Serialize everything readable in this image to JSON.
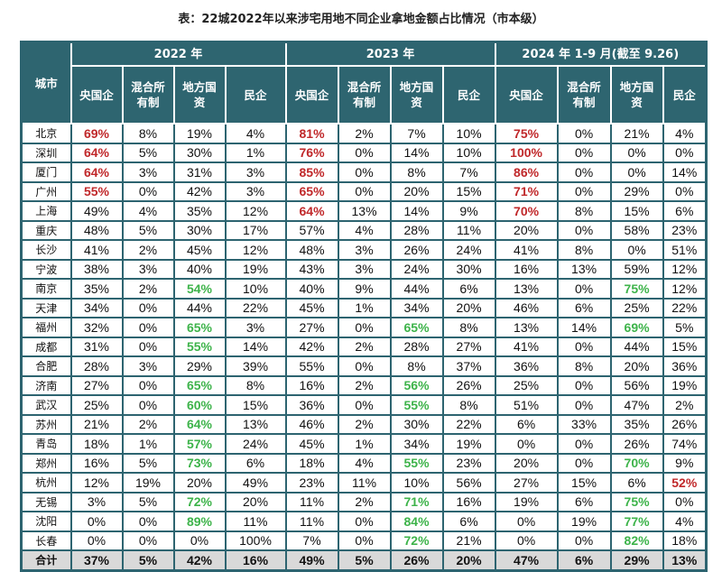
{
  "title": "表：22城2022年以来涉宅用地不同企业拿地金额占比情况（市本级）",
  "header": {
    "city": "城市",
    "years": [
      "2022 年",
      "2023 年",
      "2024 年 1-9 月(截至 9.26)"
    ],
    "cols": [
      [
        "央国企",
        "混合所有制",
        "地方国资",
        "民企"
      ],
      [
        "央国企",
        "混合所有制",
        "地方国资",
        "民企"
      ],
      [
        "央国企",
        "混合所有制",
        "地方国资",
        "民企"
      ]
    ]
  },
  "colors": {
    "red": "#c0282a",
    "green": "#3db34a",
    "header": "#2e6570"
  },
  "rows": [
    {
      "city": "北京",
      "v": [
        "69%",
        "8%",
        "19%",
        "4%",
        "81%",
        "2%",
        "7%",
        "10%",
        "75%",
        "0%",
        "21%",
        "4%"
      ],
      "hl": [
        "r",
        "",
        "",
        "",
        "r",
        "",
        "",
        "",
        "r",
        "",
        "",
        ""
      ]
    },
    {
      "city": "深圳",
      "v": [
        "64%",
        "5%",
        "30%",
        "1%",
        "76%",
        "0%",
        "14%",
        "10%",
        "100%",
        "0%",
        "0%",
        "0%"
      ],
      "hl": [
        "r",
        "",
        "",
        "",
        "r",
        "",
        "",
        "",
        "r",
        "",
        "",
        ""
      ]
    },
    {
      "city": "厦门",
      "v": [
        "64%",
        "3%",
        "31%",
        "3%",
        "85%",
        "0%",
        "8%",
        "7%",
        "86%",
        "0%",
        "0%",
        "14%"
      ],
      "hl": [
        "r",
        "",
        "",
        "",
        "r",
        "",
        "",
        "",
        "r",
        "",
        "",
        ""
      ]
    },
    {
      "city": "广州",
      "v": [
        "55%",
        "0%",
        "42%",
        "3%",
        "65%",
        "0%",
        "20%",
        "15%",
        "71%",
        "0%",
        "29%",
        "0%"
      ],
      "hl": [
        "r",
        "",
        "",
        "",
        "r",
        "",
        "",
        "",
        "r",
        "",
        "",
        ""
      ]
    },
    {
      "city": "上海",
      "v": [
        "49%",
        "4%",
        "35%",
        "12%",
        "64%",
        "13%",
        "14%",
        "9%",
        "70%",
        "8%",
        "15%",
        "6%"
      ],
      "hl": [
        "",
        "",
        "",
        "",
        "r",
        "",
        "",
        "",
        "r",
        "",
        "",
        ""
      ]
    },
    {
      "city": "重庆",
      "v": [
        "48%",
        "5%",
        "30%",
        "17%",
        "57%",
        "4%",
        "28%",
        "11%",
        "20%",
        "0%",
        "58%",
        "23%"
      ],
      "hl": [
        "",
        "",
        "",
        "",
        "",
        "",
        "",
        "",
        "",
        "",
        "",
        ""
      ]
    },
    {
      "city": "长沙",
      "v": [
        "41%",
        "2%",
        "45%",
        "12%",
        "48%",
        "3%",
        "26%",
        "24%",
        "41%",
        "8%",
        "0%",
        "51%"
      ],
      "hl": [
        "",
        "",
        "",
        "",
        "",
        "",
        "",
        "",
        "",
        "",
        "",
        ""
      ]
    },
    {
      "city": "宁波",
      "v": [
        "38%",
        "3%",
        "40%",
        "19%",
        "43%",
        "3%",
        "24%",
        "30%",
        "16%",
        "13%",
        "59%",
        "12%"
      ],
      "hl": [
        "",
        "",
        "",
        "",
        "",
        "",
        "",
        "",
        "",
        "",
        "",
        ""
      ]
    },
    {
      "city": "南京",
      "v": [
        "35%",
        "2%",
        "54%",
        "10%",
        "40%",
        "9%",
        "44%",
        "6%",
        "13%",
        "0%",
        "75%",
        "12%"
      ],
      "hl": [
        "",
        "",
        "g",
        "",
        "",
        "",
        "",
        "",
        "",
        "",
        "g",
        ""
      ]
    },
    {
      "city": "天津",
      "v": [
        "34%",
        "0%",
        "44%",
        "22%",
        "45%",
        "1%",
        "34%",
        "20%",
        "46%",
        "6%",
        "25%",
        "22%"
      ],
      "hl": [
        "",
        "",
        "",
        "",
        "",
        "",
        "",
        "",
        "",
        "",
        "",
        ""
      ]
    },
    {
      "city": "福州",
      "v": [
        "32%",
        "0%",
        "65%",
        "3%",
        "27%",
        "0%",
        "65%",
        "8%",
        "13%",
        "14%",
        "69%",
        "5%"
      ],
      "hl": [
        "",
        "",
        "g",
        "",
        "",
        "",
        "g",
        "",
        "",
        "",
        "g",
        ""
      ]
    },
    {
      "city": "成都",
      "v": [
        "31%",
        "0%",
        "55%",
        "14%",
        "42%",
        "2%",
        "28%",
        "27%",
        "41%",
        "0%",
        "44%",
        "15%"
      ],
      "hl": [
        "",
        "",
        "g",
        "",
        "",
        "",
        "",
        "",
        "",
        "",
        "",
        ""
      ]
    },
    {
      "city": "合肥",
      "v": [
        "28%",
        "3%",
        "29%",
        "39%",
        "55%",
        "0%",
        "8%",
        "37%",
        "36%",
        "8%",
        "20%",
        "36%"
      ],
      "hl": [
        "",
        "",
        "",
        "",
        "",
        "",
        "",
        "",
        "",
        "",
        "",
        ""
      ]
    },
    {
      "city": "济南",
      "v": [
        "27%",
        "0%",
        "65%",
        "8%",
        "16%",
        "2%",
        "56%",
        "26%",
        "25%",
        "0%",
        "56%",
        "19%"
      ],
      "hl": [
        "",
        "",
        "g",
        "",
        "",
        "",
        "g",
        "",
        "",
        "",
        "",
        ""
      ]
    },
    {
      "city": "武汉",
      "v": [
        "25%",
        "0%",
        "60%",
        "15%",
        "36%",
        "0%",
        "55%",
        "8%",
        "51%",
        "0%",
        "47%",
        "2%"
      ],
      "hl": [
        "",
        "",
        "g",
        "",
        "",
        "",
        "g",
        "",
        "",
        "",
        "",
        ""
      ]
    },
    {
      "city": "苏州",
      "v": [
        "21%",
        "2%",
        "64%",
        "13%",
        "46%",
        "2%",
        "30%",
        "22%",
        "6%",
        "33%",
        "35%",
        "26%"
      ],
      "hl": [
        "",
        "",
        "g",
        "",
        "",
        "",
        "",
        "",
        "",
        "",
        "",
        ""
      ]
    },
    {
      "city": "青岛",
      "v": [
        "18%",
        "1%",
        "57%",
        "24%",
        "45%",
        "1%",
        "34%",
        "19%",
        "0%",
        "0%",
        "26%",
        "74%"
      ],
      "hl": [
        "",
        "",
        "g",
        "",
        "",
        "",
        "",
        "",
        "",
        "",
        "",
        ""
      ]
    },
    {
      "city": "郑州",
      "v": [
        "16%",
        "5%",
        "73%",
        "6%",
        "18%",
        "4%",
        "55%",
        "23%",
        "20%",
        "0%",
        "70%",
        "9%"
      ],
      "hl": [
        "",
        "",
        "g",
        "",
        "",
        "",
        "g",
        "",
        "",
        "",
        "g",
        ""
      ]
    },
    {
      "city": "杭州",
      "v": [
        "12%",
        "19%",
        "20%",
        "49%",
        "23%",
        "11%",
        "10%",
        "56%",
        "27%",
        "15%",
        "6%",
        "52%"
      ],
      "hl": [
        "",
        "",
        "",
        "",
        "",
        "",
        "",
        "",
        "",
        "",
        "",
        "r"
      ]
    },
    {
      "city": "无锡",
      "v": [
        "3%",
        "5%",
        "72%",
        "20%",
        "11%",
        "2%",
        "71%",
        "16%",
        "19%",
        "6%",
        "75%",
        "0%"
      ],
      "hl": [
        "",
        "",
        "g",
        "",
        "",
        "",
        "g",
        "",
        "",
        "",
        "g",
        ""
      ]
    },
    {
      "city": "沈阳",
      "v": [
        "0%",
        "0%",
        "89%",
        "11%",
        "11%",
        "0%",
        "84%",
        "6%",
        "0%",
        "19%",
        "77%",
        "4%"
      ],
      "hl": [
        "",
        "",
        "g",
        "",
        "",
        "",
        "g",
        "",
        "",
        "",
        "g",
        ""
      ]
    },
    {
      "city": "长春",
      "v": [
        "0%",
        "0%",
        "0%",
        "100%",
        "7%",
        "0%",
        "72%",
        "21%",
        "0%",
        "0%",
        "82%",
        "18%"
      ],
      "hl": [
        "",
        "",
        "",
        "",
        "",
        "",
        "g",
        "",
        "",
        "",
        "g",
        ""
      ]
    }
  ],
  "total": {
    "city": "合计",
    "v": [
      "37%",
      "5%",
      "42%",
      "16%",
      "49%",
      "5%",
      "26%",
      "20%",
      "47%",
      "6%",
      "29%",
      "13%"
    ]
  }
}
